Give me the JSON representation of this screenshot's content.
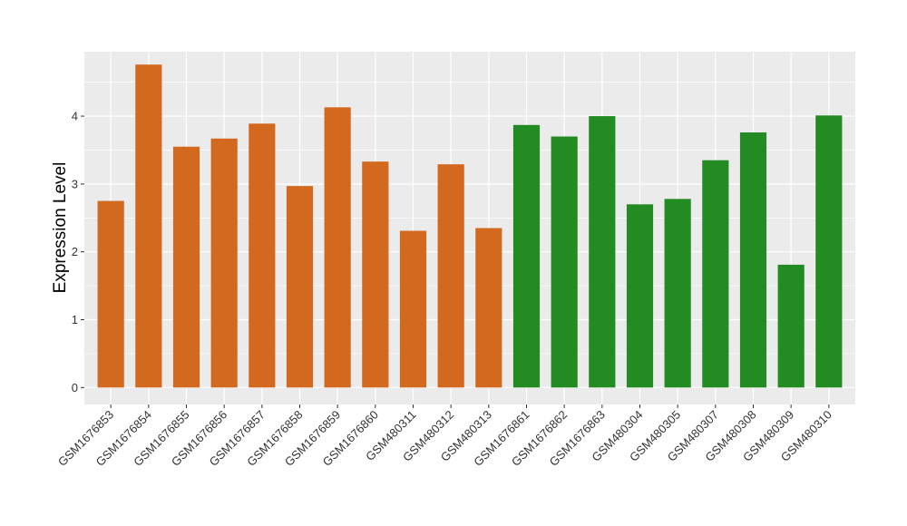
{
  "chart_data": {
    "type": "bar",
    "title": "",
    "xlabel": "",
    "ylabel": "Expression Level",
    "ylim": [
      -0.25,
      4.95
    ],
    "yticks": [
      0,
      1,
      2,
      3,
      4
    ],
    "grid": true,
    "legend": "none",
    "colors": {
      "group1": "#D2691E",
      "group2": "#228B22",
      "panel": "#EBEBEB",
      "grid": "#FFFFFF",
      "tick": "#333333"
    },
    "categories": [
      "GSM1676853",
      "GSM1676854",
      "GSM1676855",
      "GSM1676856",
      "GSM1676857",
      "GSM1676858",
      "GSM1676859",
      "GSM1676860",
      "GSM480311",
      "GSM480312",
      "GSM480313",
      "GSM1676861",
      "GSM1676862",
      "GSM1676863",
      "GSM480304",
      "GSM480305",
      "GSM480307",
      "GSM480308",
      "GSM480309",
      "GSM480310"
    ],
    "values": [
      2.75,
      4.76,
      3.55,
      3.67,
      3.89,
      2.97,
      4.13,
      3.33,
      2.31,
      3.29,
      2.35,
      3.87,
      3.7,
      4.0,
      2.7,
      2.78,
      3.35,
      3.76,
      1.81,
      4.01
    ],
    "groups": [
      1,
      1,
      1,
      1,
      1,
      1,
      1,
      1,
      1,
      1,
      1,
      2,
      2,
      2,
      2,
      2,
      2,
      2,
      2,
      2
    ]
  }
}
